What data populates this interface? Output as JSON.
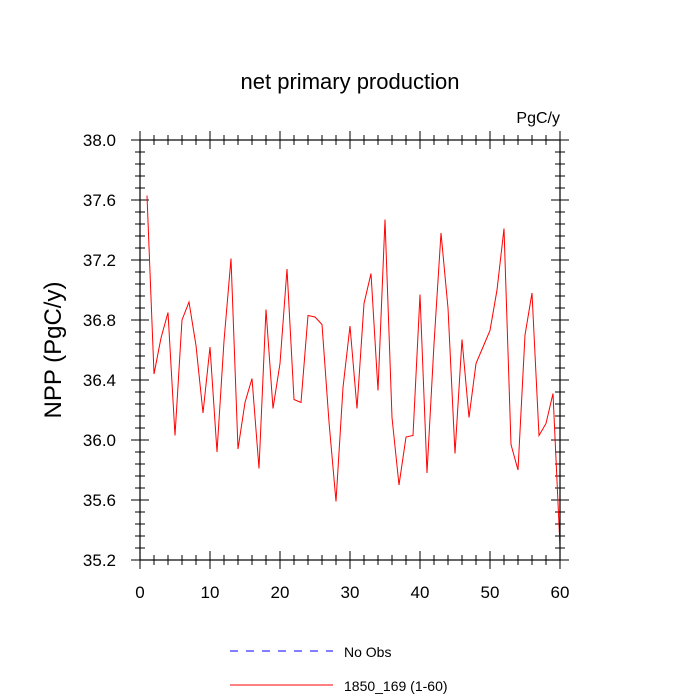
{
  "chart_data": {
    "type": "line",
    "title": "net primary production",
    "units_label": "PgC/y",
    "xlabel": "",
    "ylabel": "NPP  (PgC/y)",
    "xlim": [
      0,
      60
    ],
    "ylim": [
      35.2,
      38.0
    ],
    "x_ticks": [
      0,
      10,
      20,
      30,
      40,
      50,
      60
    ],
    "y_ticks": [
      35.2,
      35.6,
      36.0,
      36.4,
      36.8,
      37.2,
      37.6,
      38.0
    ],
    "y_tick_labels": [
      "35.2",
      "35.6",
      "36.0",
      "36.4",
      "36.8",
      "37.2",
      "37.6",
      "38.0"
    ],
    "grid": false,
    "legend_position": "bottom",
    "series": [
      {
        "name": "1850_169 (1-60)",
        "color": "#ff0000",
        "style": "solid",
        "x": [
          1,
          2,
          3,
          4,
          5,
          6,
          7,
          8,
          9,
          10,
          11,
          12,
          13,
          14,
          15,
          16,
          17,
          18,
          19,
          20,
          21,
          22,
          23,
          24,
          25,
          26,
          27,
          28,
          29,
          30,
          31,
          32,
          33,
          34,
          35,
          36,
          37,
          38,
          39,
          40,
          41,
          42,
          43,
          44,
          45,
          46,
          47,
          48,
          49,
          50,
          51,
          52,
          53,
          54,
          55,
          56,
          57,
          58,
          59,
          60
        ],
        "values": [
          37.63,
          36.44,
          36.68,
          36.85,
          36.03,
          36.8,
          36.92,
          36.63,
          36.18,
          36.62,
          35.92,
          36.66,
          37.21,
          35.94,
          36.25,
          36.41,
          35.81,
          36.87,
          36.21,
          36.51,
          37.14,
          36.27,
          36.25,
          36.83,
          36.82,
          36.77,
          36.12,
          35.59,
          36.35,
          36.76,
          36.21,
          36.91,
          37.11,
          36.33,
          37.47,
          36.15,
          35.7,
          36.02,
          36.03,
          36.97,
          35.78,
          36.64,
          37.38,
          36.88,
          35.91,
          36.67,
          36.15,
          36.51,
          36.62,
          36.73,
          37.0,
          37.41,
          35.97,
          35.8,
          36.7,
          36.98,
          36.03,
          36.11,
          36.31,
          35.29
        ]
      },
      {
        "name": "No Obs",
        "color": "#0000ff",
        "style": "dashed",
        "x": [],
        "values": []
      }
    ]
  }
}
